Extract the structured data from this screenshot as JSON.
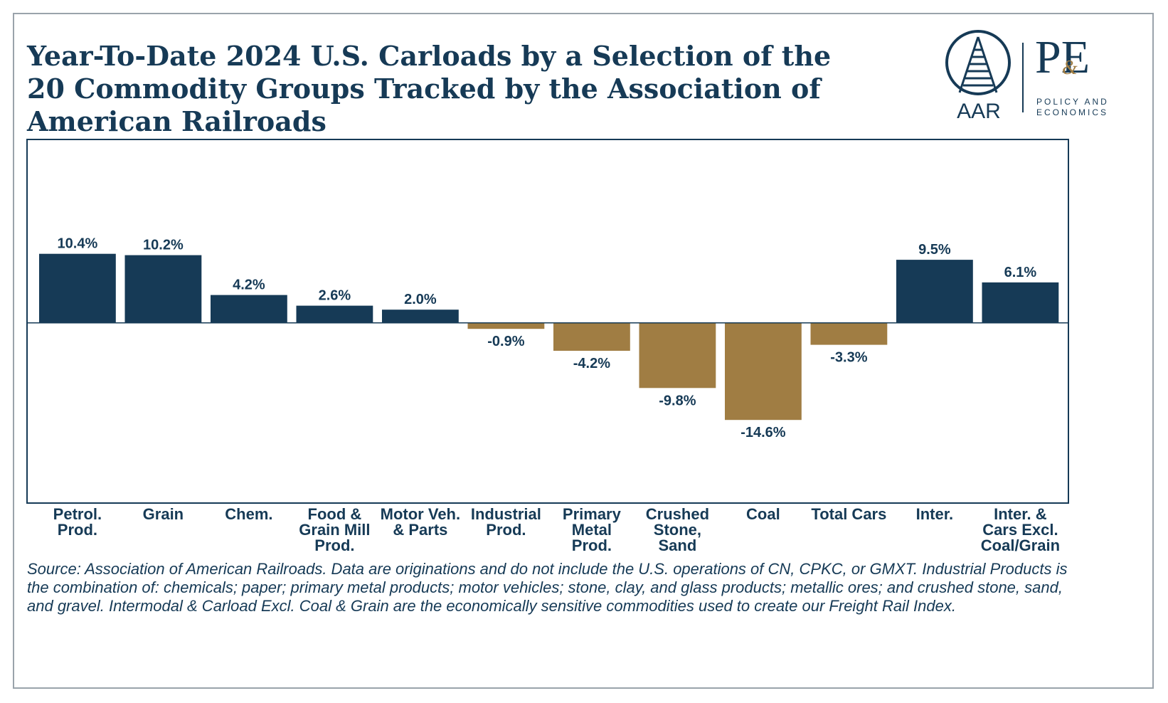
{
  "title": "Year-To-Date 2024 U.S. Carloads by a Selection of the 20 Commodity Groups Tracked by the Association of American Railroads",
  "logos": {
    "aar_text": "AAR",
    "pe_text": "PE",
    "pe_amp": "&",
    "pe_sub": "POLICY AND ECONOMICS"
  },
  "colors": {
    "positive": "#163a56",
    "negative": "#a07d43",
    "text": "#163a56"
  },
  "chart_data": {
    "type": "bar",
    "title": "Year-To-Date 2024 U.S. Carloads by a Selection of the 20 Commodity Groups Tracked by the Association of American Railroads",
    "categories": [
      "Petrol.\nProd.",
      "Grain",
      "Chem.",
      "Food &\nGrain Mill\nProd.",
      "Motor Veh.\n& Parts",
      "Industrial\nProd.",
      "Primary\nMetal\nProd.",
      "Crushed\nStone,\nSand",
      "Coal",
      "Total Cars",
      "Inter.",
      "Inter. &\nCars Excl.\nCoal/Grain"
    ],
    "values": [
      10.4,
      10.2,
      4.2,
      2.6,
      2.0,
      -0.9,
      -4.2,
      -9.8,
      -14.6,
      -3.3,
      9.5,
      6.1
    ],
    "data_labels": [
      "10.4%",
      "10.2%",
      "4.2%",
      "2.6%",
      "2.0%",
      "-0.9%",
      "-4.2%",
      "-9.8%",
      "-14.6%",
      "-3.3%",
      "9.5%",
      "6.1%"
    ],
    "ylim": [
      -27,
      27.5
    ],
    "grid": false,
    "legend": "none",
    "xlabel": "",
    "ylabel": ""
  },
  "source": "Source: Association of American Railroads. Data are originations and do not include the U.S. operations of CN, CPKC, or GMXT. Industrial Products is the combination of: chemicals; paper; primary metal products; motor vehicles; stone, clay, and glass products; metallic ores; and crushed stone, sand, and gravel. Intermodal & Carload Excl. Coal & Grain are the economically sensitive commodities used to create our Freight Rail Index."
}
